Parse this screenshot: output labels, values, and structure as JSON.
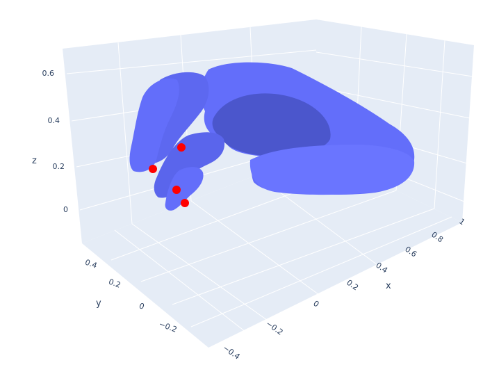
{
  "chart_data": {
    "type": "scatter3d",
    "title": "",
    "axes": {
      "x": {
        "label": "x",
        "ticks": [
          "−0.4",
          "−0.2",
          "0",
          "0.2",
          "0.4",
          "0.6",
          "0.8",
          "1"
        ]
      },
      "y": {
        "label": "y",
        "ticks": [
          "−0.2",
          "0",
          "0.2",
          "0.4"
        ]
      },
      "z": {
        "label": "z",
        "ticks": [
          "0",
          "0.2",
          "0.4",
          "0.6"
        ]
      }
    },
    "series": [
      {
        "kind": "mesh",
        "color": "#636efa"
      },
      {
        "kind": "markers",
        "color": "#ff0000",
        "points": [
          {
            "x": -0.33,
            "y": 0.05,
            "z": 0.22
          },
          {
            "x": -0.3,
            "y": 0.18,
            "z": 0.17
          },
          {
            "x": -0.2,
            "y": 0.22,
            "z": 0.07
          },
          {
            "x": -0.16,
            "y": 0.16,
            "z": 0.03
          }
        ]
      }
    ],
    "grid": true,
    "background_color": "#e5ecf6"
  }
}
